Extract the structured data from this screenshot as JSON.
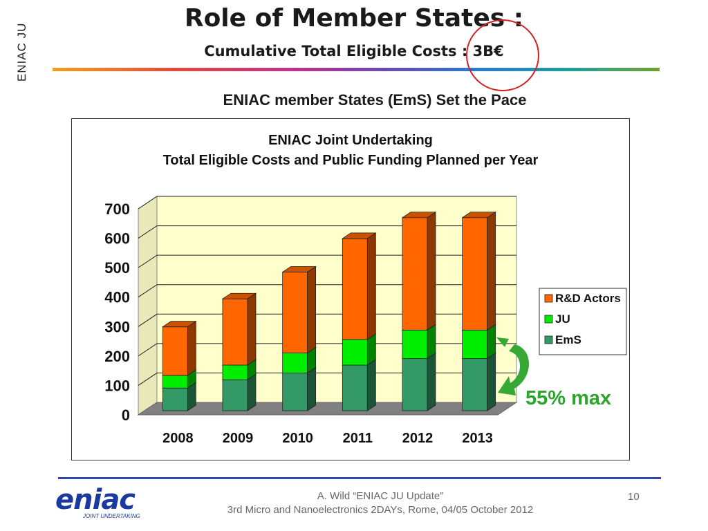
{
  "slide": {
    "side_label": "ENIAC JU",
    "title": "Role of Member States :",
    "subtitle": "Cumulative Total Eligible Costs : 3B€",
    "section_heading": "ENIAC member  States (EmS) Set the Pace",
    "annotation": "55% max",
    "footer_line1": "A. Wild “ENIAC JU Update”",
    "footer_line2": "3rd Micro and Nanoelectronics 2DAYs, Rome, 04/05 October 2012",
    "page_number": "10",
    "logo_text": "eniac",
    "logo_sub": "JOINT UNDERTAKING"
  },
  "colors": {
    "rd_actors": "#ff6600",
    "ju": "#00ee00",
    "ems": "#339966",
    "plot_wall": "#ffffcc",
    "floor": "#808080",
    "annotation": "#2ba52b",
    "highlight_circle": "#d42020"
  },
  "chart_data": {
    "type": "bar",
    "stacked": true,
    "three_d": true,
    "title": "ENIAC Joint Undertaking",
    "subtitle": "Total Eligible Costs and Public Funding Planned per Year",
    "categories": [
      "2008",
      "2009",
      "2010",
      "2011",
      "2012",
      "2013"
    ],
    "series": [
      {
        "name": "EmS",
        "values": [
          77,
          105,
          128,
          155,
          177,
          177
        ]
      },
      {
        "name": "JU",
        "values": [
          43,
          50,
          68,
          87,
          97,
          97
        ]
      },
      {
        "name": "R&D Actors",
        "values": [
          165,
          225,
          275,
          343,
          382,
          382
        ]
      }
    ],
    "ylim": [
      0,
      700
    ],
    "yticks": [
      "0",
      "100",
      "200",
      "300",
      "400",
      "500",
      "600",
      "700"
    ],
    "grid": true,
    "legend_position": "right",
    "legend_order": [
      "R&D Actors",
      "JU",
      "EmS"
    ]
  }
}
